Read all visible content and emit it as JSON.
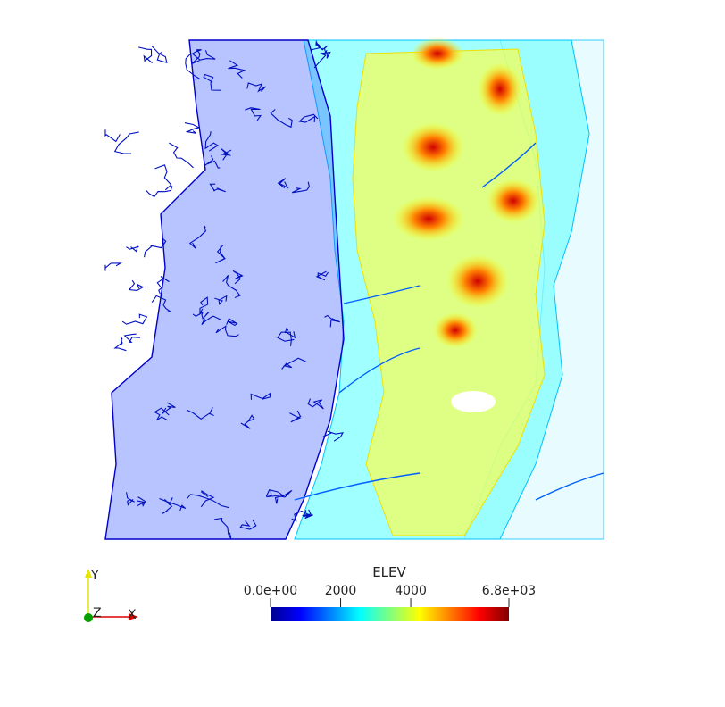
{
  "chart_data": {
    "type": "heatmap",
    "title": "",
    "colorbar": {
      "title": "ELEV",
      "range": [
        0,
        6800
      ],
      "ticks": [
        {
          "value": 0,
          "label": "0.0e+00"
        },
        {
          "value": 2000,
          "label": "2000"
        },
        {
          "value": 4000,
          "label": "4000"
        },
        {
          "value": 6800,
          "label": "6.8e+03"
        }
      ],
      "colormap": [
        "#00008f",
        "#0000ff",
        "#0080ff",
        "#00ffff",
        "#80ff80",
        "#ffff00",
        "#ff8000",
        "#ff0000",
        "#800000"
      ]
    },
    "orientation_axes": {
      "y_label": "Y",
      "z_label": "Z",
      "x_label": "X",
      "colors": {
        "x": "#e00000",
        "y": "#e6e600",
        "z": "#00a000"
      }
    },
    "grid": false
  }
}
